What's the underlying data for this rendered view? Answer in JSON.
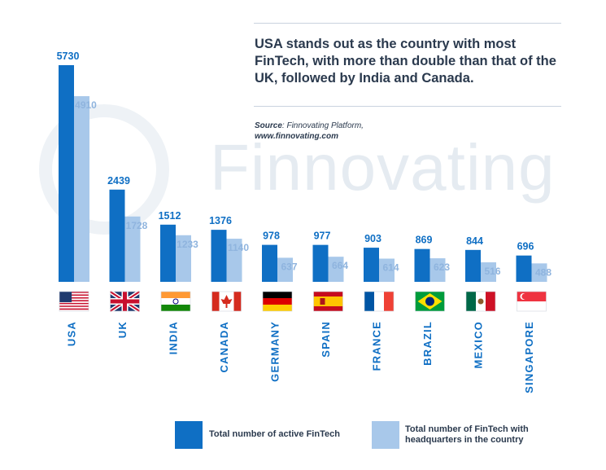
{
  "headline": "USA stands out as the country with most FinTech, with more than double than that of the UK, followed by India and Canada.",
  "source": {
    "label": "Source",
    "text": ": Finnovating Platform,",
    "url": "www.finnovating.com"
  },
  "watermark": "Finnovating",
  "colors": {
    "active": "#0f6fc4",
    "headquarters": "#a8c8ea",
    "value_active": "#0f6fc4",
    "value_hq": "#8fb4de"
  },
  "chart_data": {
    "type": "bar",
    "categories": [
      "USA",
      "UK",
      "INDIA",
      "CANADA",
      "GERMANY",
      "SPAIN",
      "FRANCE",
      "BRAZIL",
      "MEXICO",
      "SINGAPORE"
    ],
    "flag_icons": [
      "usa-flag-icon",
      "uk-flag-icon",
      "india-flag-icon",
      "canada-flag-icon",
      "germany-flag-icon",
      "spain-flag-icon",
      "france-flag-icon",
      "brazil-flag-icon",
      "mexico-flag-icon",
      "singapore-flag-icon"
    ],
    "series": [
      {
        "name": "Total number of active FinTech",
        "values": [
          5730,
          2439,
          1512,
          1376,
          978,
          977,
          903,
          869,
          844,
          696
        ]
      },
      {
        "name": "Total number of FinTech with headquarters in the country",
        "values": [
          4910,
          1728,
          1233,
          1140,
          637,
          664,
          614,
          623,
          516,
          488
        ]
      }
    ],
    "ylim": [
      0,
      5730
    ],
    "legend_position": "bottom",
    "grid": false
  },
  "legend": {
    "active": "Total number of active FinTech",
    "hq_line1": "Total number of FinTech with",
    "hq_line2": "headquarters in the country"
  }
}
